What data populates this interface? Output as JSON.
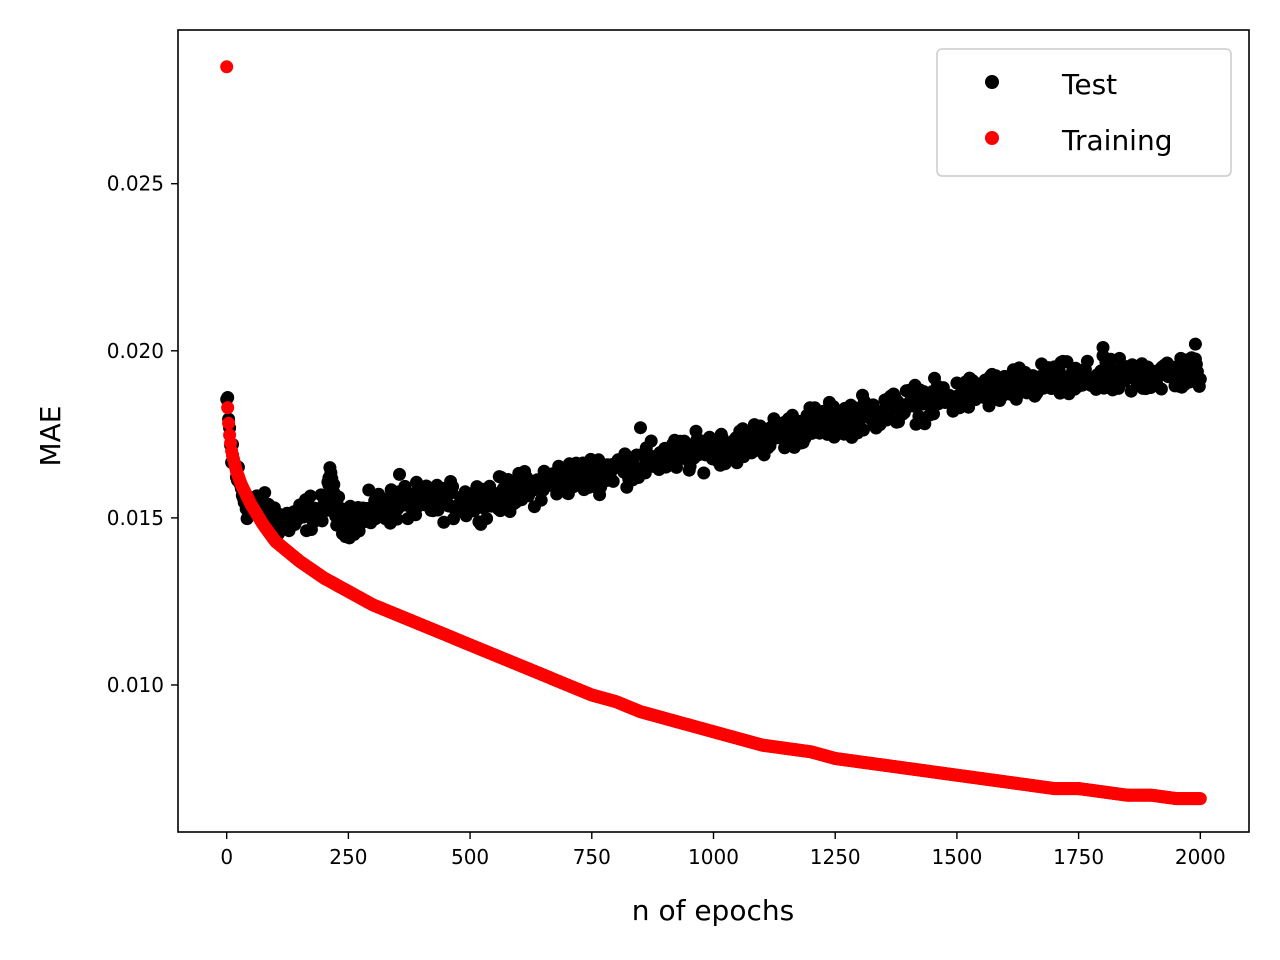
{
  "chart_data": {
    "type": "scatter",
    "title": "",
    "xlabel": "n of epochs",
    "ylabel": "MAE",
    "xlim": [
      -100,
      2100
    ],
    "ylim": [
      0.0056,
      0.0296
    ],
    "xticks": [
      0,
      250,
      500,
      750,
      1000,
      1250,
      1500,
      1750,
      2000
    ],
    "xtick_labels": [
      "0",
      "250",
      "500",
      "750",
      "1000",
      "1250",
      "1500",
      "1750",
      "2000"
    ],
    "yticks": [
      0.01,
      0.015,
      0.02,
      0.025
    ],
    "ytick_labels": [
      "0.010",
      "0.015",
      "0.020",
      "0.025"
    ],
    "grid": false,
    "legend_position": "top-right",
    "series": [
      {
        "name": "Test",
        "color": "#000000",
        "marker": "circle",
        "x": [
          0,
          10,
          20,
          30,
          40,
          50,
          75,
          100,
          125,
          150,
          175,
          200,
          210,
          225,
          250,
          275,
          300,
          325,
          350,
          375,
          400,
          450,
          500,
          550,
          600,
          650,
          700,
          750,
          800,
          850,
          900,
          950,
          1000,
          1050,
          1100,
          1150,
          1200,
          1250,
          1300,
          1350,
          1400,
          1450,
          1500,
          1550,
          1600,
          1650,
          1700,
          1750,
          1800,
          1850,
          1900,
          1950,
          1990,
          2000
        ],
        "y": [
          0.0185,
          0.0168,
          0.0164,
          0.0158,
          0.0155,
          0.0153,
          0.0152,
          0.015,
          0.0149,
          0.015,
          0.0152,
          0.0151,
          0.0162,
          0.0151,
          0.015,
          0.015,
          0.0152,
          0.0153,
          0.0154,
          0.0155,
          0.0154,
          0.0155,
          0.0155,
          0.0156,
          0.0158,
          0.016,
          0.0162,
          0.0163,
          0.0165,
          0.0166,
          0.0168,
          0.0169,
          0.0171,
          0.0172,
          0.0174,
          0.0176,
          0.0178,
          0.0179,
          0.0181,
          0.0182,
          0.0184,
          0.0185,
          0.0186,
          0.0188,
          0.0189,
          0.019,
          0.0191,
          0.0191,
          0.0192,
          0.0192,
          0.0193,
          0.0193,
          0.0194,
          0.0194
        ],
        "scatter_spread": 0.0004
      },
      {
        "name": "Training",
        "color": "#ff0000",
        "marker": "circle",
        "x": [
          0,
          2,
          5,
          10,
          20,
          30,
          50,
          75,
          100,
          150,
          200,
          250,
          300,
          350,
          400,
          450,
          500,
          550,
          600,
          650,
          700,
          750,
          800,
          850,
          900,
          950,
          1000,
          1050,
          1100,
          1150,
          1200,
          1250,
          1300,
          1350,
          1400,
          1450,
          1500,
          1550,
          1600,
          1650,
          1700,
          1750,
          1800,
          1850,
          1900,
          1950,
          2000
        ],
        "y": [
          0.0285,
          0.0183,
          0.0176,
          0.017,
          0.0164,
          0.016,
          0.0154,
          0.0148,
          0.0143,
          0.0137,
          0.0132,
          0.0128,
          0.0124,
          0.0121,
          0.0118,
          0.0115,
          0.0112,
          0.0109,
          0.0106,
          0.0103,
          0.01,
          0.0097,
          0.0095,
          0.0092,
          0.009,
          0.0088,
          0.0086,
          0.0084,
          0.0082,
          0.0081,
          0.008,
          0.0078,
          0.0077,
          0.0076,
          0.0075,
          0.0074,
          0.0073,
          0.0072,
          0.0071,
          0.007,
          0.0069,
          0.0069,
          0.0068,
          0.0067,
          0.0067,
          0.0066,
          0.0066
        ]
      }
    ]
  }
}
